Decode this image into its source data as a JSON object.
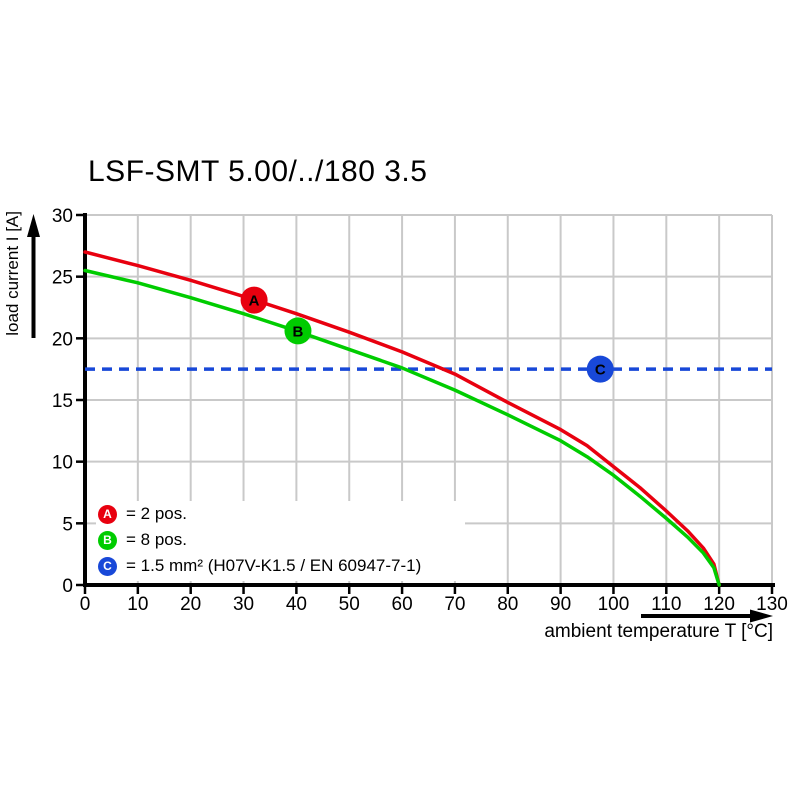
{
  "title": "LSF-SMT 5.00/../180 3.5",
  "x_axis": {
    "label": "ambient temperature T [°C]",
    "ticks": [
      0,
      10,
      20,
      30,
      40,
      50,
      60,
      70,
      80,
      90,
      100,
      110,
      120,
      130
    ],
    "min": 0,
    "max": 130
  },
  "y_axis": {
    "label": "load current I [A]",
    "ticks": [
      0,
      5,
      10,
      15,
      20,
      25,
      30
    ],
    "min": 0,
    "max": 30
  },
  "legend": {
    "items": [
      {
        "letter": "A",
        "label": "= 2 pos.",
        "color": "#e8000f"
      },
      {
        "letter": "B",
        "label": "= 8 pos.",
        "color": "#00cc00"
      },
      {
        "letter": "C",
        "label": "= 1.5 mm² (H07V-K1.5 / EN 60947-7-1)",
        "color": "#1848d8"
      }
    ]
  },
  "colors": {
    "axis": "#000000",
    "grid": "#c9c9c9",
    "red": "#e8000f",
    "green": "#00cc00",
    "blue": "#1848d8"
  },
  "chart_data": {
    "type": "line",
    "title": "LSF-SMT 5.00/../180 3.5",
    "xlabel": "ambient temperature T [°C]",
    "ylabel": "load current I [A]",
    "xlim": [
      0,
      130
    ],
    "ylim": [
      0,
      30
    ],
    "grid": true,
    "series": [
      {
        "name": "2 pos.",
        "marker": "A",
        "color": "#e8000f",
        "points": [
          [
            0,
            27.0
          ],
          [
            10,
            25.9
          ],
          [
            20,
            24.7
          ],
          [
            30,
            23.4
          ],
          [
            40,
            22.0
          ],
          [
            50,
            20.5
          ],
          [
            60,
            18.9
          ],
          [
            70,
            17.1
          ],
          [
            80,
            14.8
          ],
          [
            90,
            12.6
          ],
          [
            95,
            11.3
          ],
          [
            100,
            9.6
          ],
          [
            105,
            7.9
          ],
          [
            110,
            6.0
          ],
          [
            114,
            4.4
          ],
          [
            117,
            3.0
          ],
          [
            119,
            1.7
          ],
          [
            120,
            0
          ]
        ]
      },
      {
        "name": "8 pos.",
        "marker": "B",
        "color": "#00cc00",
        "points": [
          [
            0,
            25.5
          ],
          [
            10,
            24.5
          ],
          [
            20,
            23.3
          ],
          [
            30,
            22.0
          ],
          [
            40,
            20.6
          ],
          [
            50,
            19.1
          ],
          [
            60,
            17.6
          ],
          [
            70,
            15.8
          ],
          [
            80,
            13.8
          ],
          [
            90,
            11.7
          ],
          [
            95,
            10.4
          ],
          [
            100,
            8.9
          ],
          [
            105,
            7.2
          ],
          [
            110,
            5.4
          ],
          [
            114,
            3.9
          ],
          [
            117,
            2.6
          ],
          [
            119,
            1.4
          ],
          [
            120,
            0
          ]
        ]
      }
    ],
    "reference_line": {
      "marker": "C",
      "label": "1.5 mm² (H07V-K1.5 / EN 60947-7-1)",
      "y": 17.5,
      "color": "#1848d8",
      "style": "dashed"
    },
    "markers": [
      {
        "letter": "A",
        "x": 32,
        "y": 23.1,
        "color": "#e8000f"
      },
      {
        "letter": "B",
        "x": 40.3,
        "y": 20.6,
        "color": "#00cc00"
      },
      {
        "letter": "C",
        "x": 97.5,
        "y": 17.5,
        "color": "#1848d8"
      }
    ]
  }
}
